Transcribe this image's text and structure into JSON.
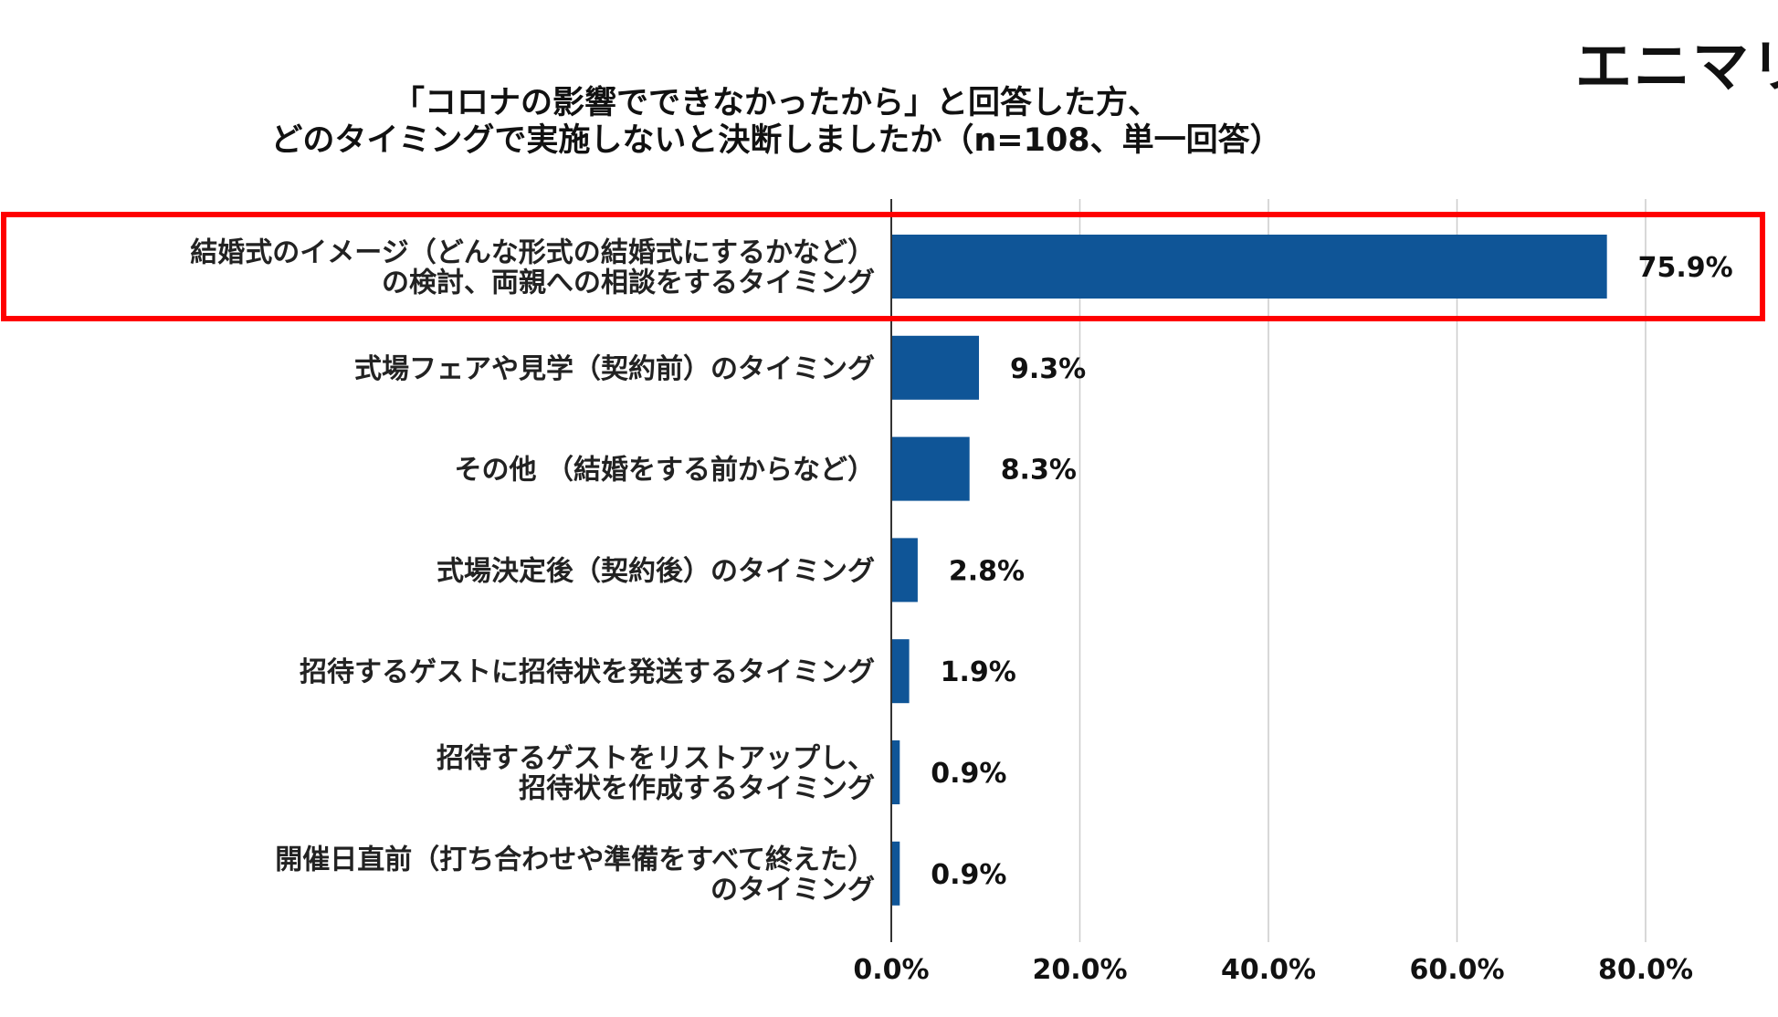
{
  "logo": {
    "text": "エニマリ"
  },
  "chart_data": {
    "type": "bar",
    "orientation": "horizontal",
    "title_lines": [
      "「コロナの影響でできなかったから」と回答した方、",
      "どのタイミングで実施しないと決断しましたか（n=108、単一回答）"
    ],
    "categories": [
      [
        "結婚式のイメージ（どんな形式の結婚式にするかなど）",
        "の検討、両親への相談をするタイミング"
      ],
      [
        "式場フェアや見学（契約前）のタイミング"
      ],
      [
        "その他 （結婚をする前からなど）"
      ],
      [
        "式場決定後（契約後）のタイミング"
      ],
      [
        "招待するゲストに招待状を発送するタイミング"
      ],
      [
        "招待するゲストをリストアップし、",
        "招待状を作成するタイミング"
      ],
      [
        "開催日直前（打ち合わせや準備をすべて終えた）",
        "のタイミング"
      ]
    ],
    "values": [
      75.9,
      9.3,
      8.3,
      2.8,
      1.9,
      0.9,
      0.9
    ],
    "value_labels": [
      "75.9%",
      "9.3%",
      "8.3%",
      "2.8%",
      "1.9%",
      "0.9%",
      "0.9%"
    ],
    "xlim": [
      0,
      90
    ],
    "xticks": [
      0,
      20,
      40,
      60,
      80
    ],
    "xtick_labels": [
      "0.0%",
      "20.0%",
      "40.0%",
      "60.0%",
      "80.0%"
    ],
    "grid": true,
    "highlighted_category_index": 0,
    "colors": {
      "bar": "#0f5597",
      "highlight_box": "#ff0000",
      "grid": "#cccccc",
      "axis": "#333333"
    }
  }
}
